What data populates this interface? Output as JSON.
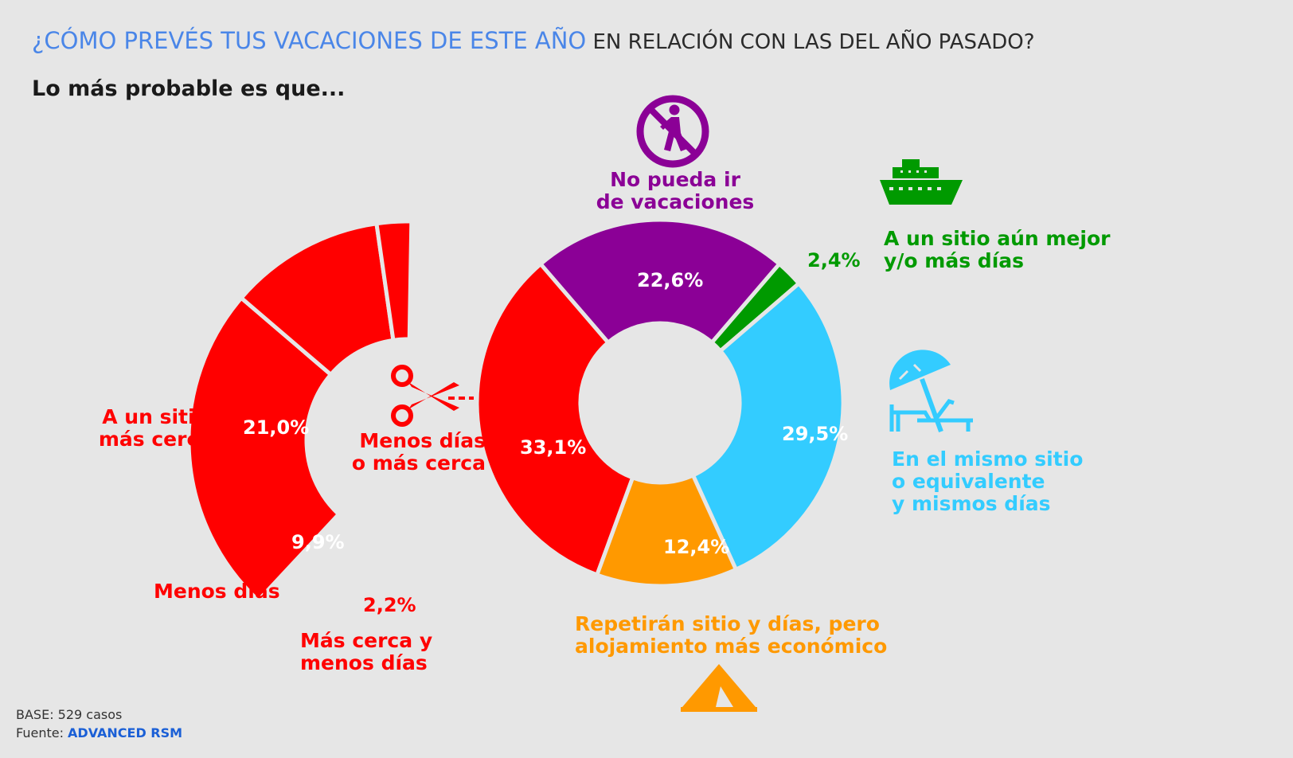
{
  "title": {
    "part1": "¿CÓMO PREVÉS TUS VACACIONES DE ESTE AÑO",
    "part2": " EN RELACIÓN CON LAS DEL AÑO PASADO?"
  },
  "subtitle": "Lo más probable es que...",
  "colors": {
    "red": "#ff0000",
    "purple": "#8b0096",
    "green": "#009a00",
    "blue": "#33ccff",
    "orange": "#ff9900"
  },
  "icons": {
    "no_walk": "no-walking-icon",
    "ship": "cruise-ship-icon",
    "scissors": "scissors-icon",
    "beach": "beach-umbrella-icon",
    "tent": "tent-icon"
  },
  "chart_data": [
    {
      "type": "pie",
      "title": "",
      "series": [
        {
          "values": [
            22.6,
            2.4,
            29.5,
            12.4,
            33.1
          ],
          "value_labels": [
            "22,6%",
            "2,4%",
            "29,5%",
            "12,4%",
            "33,1%"
          ]
        }
      ],
      "categories": [
        "No pueda ir de vacaciones",
        "A un sitio aún mejor y/o más días",
        "En el mismo sitio o equivalente y mismos días",
        "Repetirán sitio y días, pero alojamiento más económico",
        "Menos días o más cerca"
      ]
    },
    {
      "type": "pie",
      "title": "",
      "series": [
        {
          "values": [
            21.0,
            9.9,
            2.2
          ],
          "value_labels": [
            "21,0%",
            "9,9%",
            "2,2%"
          ]
        }
      ],
      "categories": [
        "A un sitio más cerca",
        "Menos días",
        "Más cerca y menos días"
      ]
    }
  ],
  "labels": {
    "no_pueda": [
      "No pueda ir",
      "de vacaciones"
    ],
    "mejor": [
      "A un sitio aún mejor",
      "y/o más días"
    ],
    "mismo": [
      "En el mismo sitio",
      "o equivalente",
      "y mismos días"
    ],
    "repetiran": [
      "Repetirán sitio y días, pero",
      "alojamiento más económico"
    ],
    "menos_dias_cerca": [
      "Menos días",
      "o más cerca"
    ],
    "sitio_cerca": [
      "A un sitio",
      "más cerca"
    ],
    "menos_dias": "Menos días",
    "cerca_menos": [
      "Más cerca y",
      "menos días"
    ]
  },
  "footer": {
    "base": "BASE: 529 casos",
    "fuente_label": "Fuente: ",
    "fuente_value": "ADVANCED RSM"
  }
}
